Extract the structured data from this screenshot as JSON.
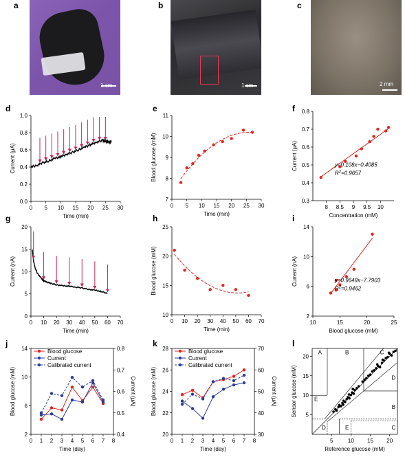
{
  "figure": {
    "panel_letters": [
      "a",
      "b",
      "c",
      "d",
      "e",
      "f",
      "g",
      "h",
      "i",
      "j",
      "k",
      "l"
    ],
    "scalebars": {
      "a": "1 cm",
      "b": "1 cm",
      "c": "2 mm"
    },
    "colors": {
      "red": "#e2241f",
      "blue": "#2b3a9c",
      "arrow": "#c8205a",
      "black": "#000000"
    }
  },
  "chart_data": [
    {
      "id": "d",
      "type": "line",
      "xlabel": "Time (min)",
      "ylabel": "Current (μA)",
      "xlim": [
        0,
        30
      ],
      "ylim": [
        0,
        1.0
      ],
      "xticks": [
        0,
        5,
        10,
        15,
        20,
        25,
        30
      ],
      "yticks": [
        0.0,
        0.2,
        0.4,
        0.6,
        0.8,
        1.0
      ],
      "series": [
        {
          "x": [
            0,
            2,
            4,
            6,
            8,
            10,
            12,
            14,
            16,
            18,
            20,
            22,
            24,
            25,
            26,
            27
          ],
          "y": [
            0.4,
            0.42,
            0.45,
            0.47,
            0.5,
            0.52,
            0.55,
            0.57,
            0.6,
            0.63,
            0.66,
            0.69,
            0.71,
            0.7,
            0.69,
            0.69
          ],
          "color": "#000000"
        }
      ],
      "arrows_at": [
        3,
        5,
        7,
        9,
        11,
        13,
        15,
        17,
        19,
        21,
        23,
        25
      ],
      "grid": false
    },
    {
      "id": "e",
      "type": "scatter",
      "xlabel": "Time (min)",
      "ylabel": "Blood glucose (mM)",
      "xlim": [
        0,
        30
      ],
      "ylim": [
        7,
        11
      ],
      "xticks": [
        0,
        5,
        10,
        15,
        20,
        25,
        30
      ],
      "yticks": [
        7,
        8,
        9,
        10,
        11
      ],
      "series": [
        {
          "x": [
            3,
            5,
            7,
            9,
            11,
            14,
            17,
            20,
            24,
            27
          ],
          "y": [
            7.8,
            8.5,
            8.7,
            9.1,
            9.3,
            9.6,
            9.75,
            9.9,
            10.3,
            10.2
          ],
          "color": "#e2241f",
          "fit": "dashed"
        }
      ],
      "grid": false
    },
    {
      "id": "f",
      "type": "scatter",
      "xlabel": "Concentration (mM)",
      "ylabel": "Current (μA)",
      "xlim": [
        7.5,
        10.5
      ],
      "ylim": [
        0.3,
        0.8
      ],
      "xticks": [
        8,
        8.5,
        9,
        9.5,
        10
      ],
      "yticks": [
        0.3,
        0.4,
        0.5,
        0.6,
        0.7,
        0.8
      ],
      "series": [
        {
          "x": [
            7.8,
            8.5,
            8.7,
            9.1,
            9.3,
            9.6,
            9.75,
            9.9,
            10.2,
            10.3
          ],
          "y": [
            0.43,
            0.49,
            0.52,
            0.55,
            0.59,
            0.63,
            0.66,
            0.7,
            0.69,
            0.71
          ],
          "color": "#e2241f",
          "fit": "solid"
        }
      ],
      "fit_slope": 0.108,
      "fit_intercept": -0.4085,
      "equation": "y=0.108x−0.4085",
      "r2": "R2=0.9657",
      "grid": false
    },
    {
      "id": "g",
      "type": "line",
      "xlabel": "Time (min)",
      "ylabel": "Current (nA)",
      "xlim": [
        0,
        70
      ],
      "ylim": [
        0,
        20
      ],
      "xticks": [
        0,
        10,
        20,
        30,
        40,
        50,
        60,
        70
      ],
      "yticks": [
        0,
        5,
        10,
        15,
        20
      ],
      "series": [
        {
          "x": [
            1,
            2,
            3,
            5,
            8,
            10,
            13,
            16,
            20,
            25,
            30,
            35,
            40,
            45,
            50,
            55,
            60
          ],
          "y": [
            15,
            12.5,
            11,
            9.6,
            8.5,
            7.9,
            7.6,
            7.3,
            7.0,
            6.8,
            6.7,
            6.5,
            6.3,
            6.0,
            5.8,
            5.5,
            5.1
          ],
          "color": "#000000"
        }
      ],
      "arrows_at": [
        2,
        10,
        20,
        30,
        40,
        50,
        60
      ],
      "grid": false
    },
    {
      "id": "h",
      "type": "scatter",
      "xlabel": "Time (min)",
      "ylabel": "Blood glucose (mM)",
      "xlim": [
        0,
        70
      ],
      "ylim": [
        10,
        25
      ],
      "xticks": [
        0,
        10,
        20,
        30,
        40,
        50,
        60,
        70
      ],
      "yticks": [
        10,
        15,
        20,
        25
      ],
      "series": [
        {
          "x": [
            2,
            10,
            20,
            30,
            40,
            50,
            60
          ],
          "y": [
            21,
            17.6,
            16.2,
            14.3,
            15,
            14.3,
            13.3
          ],
          "color": "#e2241f",
          "fit": "dashed"
        }
      ],
      "grid": false
    },
    {
      "id": "i",
      "type": "scatter",
      "xlabel": "Blood glucose (mM)",
      "ylabel": "Current (nA)",
      "xlim": [
        10,
        25
      ],
      "ylim": [
        2,
        14
      ],
      "xticks": [
        10,
        15,
        20,
        25
      ],
      "yticks": [
        2,
        6,
        10,
        14
      ],
      "series": [
        {
          "x": [
            13.3,
            14.3,
            14.3,
            15,
            16.2,
            17.6,
            21
          ],
          "y": [
            5.1,
            5.5,
            6.8,
            6.2,
            7.3,
            8.3,
            13.0
          ],
          "color": "#e2241f",
          "fit": "solid"
        }
      ],
      "fit_slope": 0.9649,
      "fit_intercept": -7.7903,
      "equation": "y=0.9649x−7.7903",
      "r2": "R2=0.9462",
      "grid": false
    },
    {
      "id": "j",
      "type": "line",
      "xlabel": "Time (day)",
      "ylabel": "Blood glucose (mM)",
      "y2label": "Current (μA)",
      "xlim": [
        0,
        8
      ],
      "ylim": [
        2,
        14
      ],
      "y2lim": [
        0.4,
        0.8
      ],
      "xticks": [
        0,
        1,
        2,
        3,
        4,
        5,
        6,
        7,
        8
      ],
      "yticks": [
        2,
        6,
        10,
        14
      ],
      "y2ticks": [
        0.4,
        0.5,
        0.6,
        0.7,
        0.8
      ],
      "series": [
        {
          "name": "Blood glucose",
          "axis": "left",
          "color": "#e2241f",
          "style": "solid",
          "x": [
            1,
            2,
            3,
            4,
            5,
            6,
            7
          ],
          "y": [
            4.1,
            5.7,
            5.4,
            8.6,
            6.7,
            8.6,
            6.3
          ]
        },
        {
          "name": "Current",
          "axis": "right",
          "color": "#2b3a9c",
          "style": "solid",
          "x": [
            1,
            2,
            3,
            4,
            5,
            6,
            7
          ],
          "y": [
            0.49,
            0.495,
            0.47,
            0.56,
            0.55,
            0.64,
            0.55
          ]
        },
        {
          "name": "Calibrated current",
          "axis": "right",
          "color": "#2b3a9c",
          "style": "dashed",
          "x": [
            1,
            2,
            3,
            4,
            5,
            6,
            7
          ],
          "y": [
            0.5,
            0.59,
            0.58,
            0.665,
            0.62,
            0.65,
            0.56
          ]
        }
      ],
      "legend": "top-left",
      "grid": false
    },
    {
      "id": "k",
      "type": "line",
      "xlabel": "Time (day)",
      "ylabel": "Blood glucose (mM)",
      "y2label": "Current (μA)",
      "xlim": [
        0,
        8
      ],
      "ylim": [
        20,
        28
      ],
      "y2lim": [
        30,
        70
      ],
      "xticks": [
        0,
        1,
        2,
        3,
        4,
        5,
        6,
        7,
        8
      ],
      "yticks": [
        20,
        22,
        24,
        26,
        28
      ],
      "y2ticks": [
        30,
        40,
        50,
        60,
        70
      ],
      "series": [
        {
          "name": "Blood glucose",
          "axis": "left",
          "color": "#e2241f",
          "style": "solid",
          "x": [
            1,
            2,
            3,
            4,
            5,
            6,
            7
          ],
          "y": [
            23.7,
            24.1,
            23.4,
            24.9,
            25.1,
            25.4,
            26.0
          ]
        },
        {
          "name": "Current",
          "axis": "right",
          "color": "#2b3a9c",
          "style": "solid",
          "x": [
            1,
            2,
            3,
            4,
            5,
            6,
            7
          ],
          "y": [
            45.5,
            42,
            37.5,
            47.5,
            51,
            53,
            54
          ]
        },
        {
          "name": "Calibrated current",
          "axis": "right",
          "color": "#2b3a9c",
          "style": "dashed",
          "x": [
            1,
            2,
            3,
            4,
            5,
            6,
            7
          ],
          "y": [
            44,
            48.7,
            46.5,
            54.5,
            56,
            55,
            57.5
          ]
        }
      ],
      "legend": "top-left",
      "grid": false
    },
    {
      "id": "l",
      "type": "scatter",
      "xlabel": "Reference glucose (mM)",
      "ylabel": "Sensor glucose (mM)",
      "xlim": [
        0,
        22
      ],
      "ylim": [
        0,
        22
      ],
      "xticks": [
        5,
        10,
        15,
        20
      ],
      "yticks": [
        5,
        10,
        15,
        20
      ],
      "zones": [
        "A",
        "B",
        "C",
        "D",
        "E",
        "B",
        "C",
        "D",
        "E"
      ],
      "series": [
        {
          "color": "#000000",
          "x": [
            5.5,
            6.0,
            6.3,
            6.8,
            7.0,
            7.4,
            7.8,
            8.1,
            8.5,
            8.9,
            9.2,
            9.6,
            10.0,
            10.3,
            10.7,
            11.0,
            11.5,
            12.0,
            13.0,
            14.0,
            14.5,
            15.0,
            15.5,
            16.0,
            16.5,
            17.0,
            17.5,
            18.0,
            18.5,
            19.0,
            19.5,
            20.0,
            20.5,
            21.0,
            21.5,
            8.0,
            9.5,
            10.5,
            13.5,
            16.8,
            18.2,
            19.8
          ],
          "y": [
            5.8,
            6.4,
            6.1,
            7.0,
            7.5,
            7.2,
            8.0,
            8.6,
            8.3,
            9.0,
            9.5,
            9.2,
            10.1,
            10.7,
            10.4,
            11.3,
            11.8,
            12.3,
            13.5,
            14.4,
            15.0,
            15.3,
            16.1,
            16.4,
            16.9,
            17.5,
            17.2,
            18.3,
            18.9,
            19.5,
            19.8,
            20.6,
            20.2,
            21.1,
            21.4,
            7.6,
            10.2,
            11.6,
            14.0,
            17.9,
            19.1,
            20.9
          ]
        }
      ],
      "grid": false
    }
  ]
}
